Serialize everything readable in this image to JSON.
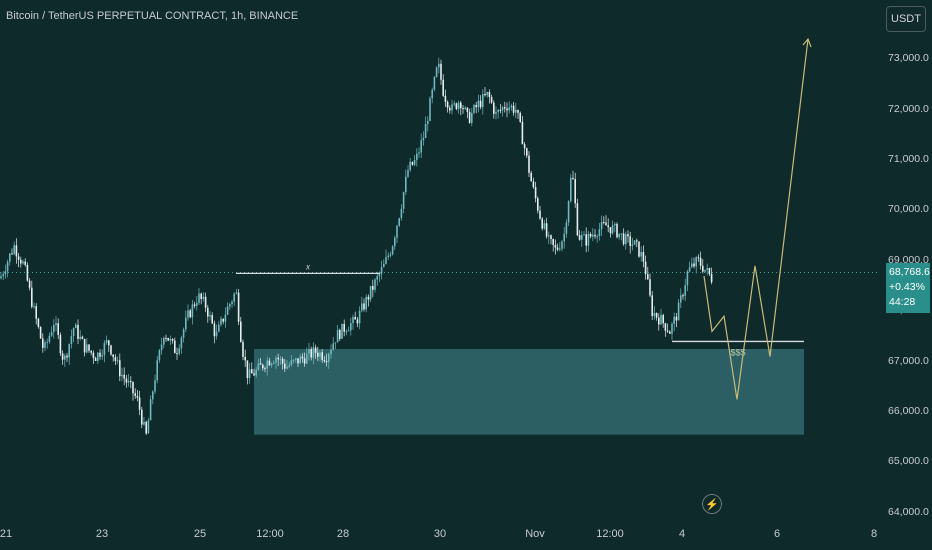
{
  "header": {
    "title": "Bitcoin / TetherUS PERPETUAL CONTRACT, 1h, BINANCE",
    "currency_button": "USDT"
  },
  "price_tag": {
    "price": "68,768.6",
    "change": "+0.43%",
    "countdown": "44:28"
  },
  "annotations": {
    "level_label": "x",
    "sss_label": "$$$"
  },
  "icons": {
    "replay": "lightning-bolt-icon"
  },
  "colors": {
    "background": "#0f2a2a",
    "candle": "#5fa8b0",
    "demand_zone": "#2e6266",
    "projection": "#c9b97a",
    "level_line": "#d7dbe0",
    "price_tag": "#2a8f8a"
  },
  "chart_data": {
    "type": "candlestick",
    "y_axis": {
      "ticks": [
        64000,
        65000,
        66000,
        67000,
        68000,
        69000,
        70000,
        71000,
        72000,
        73000
      ],
      "tick_labels": [
        "64,000.0",
        "65,000.0",
        "66,000.0",
        "67,000.0",
        "68,000.0",
        "69,000.0",
        "70,000.0",
        "71,000.0",
        "72,000.0",
        "73,000.0"
      ],
      "range": [
        63800,
        73500
      ]
    },
    "x_axis": {
      "tick_labels": [
        "21",
        "23",
        "25",
        "12:00",
        "28",
        "30",
        "Nov",
        "12:00",
        "4",
        "6",
        "8"
      ]
    },
    "last_price": 68768.6,
    "price_path": [
      [
        0,
        68650
      ],
      [
        14,
        69300
      ],
      [
        24,
        68900
      ],
      [
        34,
        68000
      ],
      [
        44,
        67200
      ],
      [
        54,
        67800
      ],
      [
        64,
        67000
      ],
      [
        74,
        67700
      ],
      [
        84,
        67300
      ],
      [
        96,
        67100
      ],
      [
        108,
        67400
      ],
      [
        120,
        66800
      ],
      [
        130,
        66500
      ],
      [
        138,
        66200
      ],
      [
        146,
        65500
      ],
      [
        154,
        66600
      ],
      [
        164,
        67600
      ],
      [
        176,
        67200
      ],
      [
        188,
        67900
      ],
      [
        198,
        68300
      ],
      [
        206,
        68100
      ],
      [
        216,
        67500
      ],
      [
        226,
        68000
      ],
      [
        236,
        68400
      ],
      [
        242,
        67300
      ],
      [
        248,
        66700
      ],
      [
        256,
        66800
      ],
      [
        266,
        67000
      ],
      [
        276,
        67100
      ],
      [
        286,
        66900
      ],
      [
        296,
        67000
      ],
      [
        306,
        67100
      ],
      [
        316,
        67200
      ],
      [
        326,
        67100
      ],
      [
        336,
        67500
      ],
      [
        346,
        67700
      ],
      [
        356,
        67800
      ],
      [
        366,
        68200
      ],
      [
        376,
        68600
      ],
      [
        384,
        68900
      ],
      [
        392,
        69300
      ],
      [
        400,
        70000
      ],
      [
        408,
        70800
      ],
      [
        416,
        71000
      ],
      [
        424,
        71500
      ],
      [
        432,
        72300
      ],
      [
        438,
        72900
      ],
      [
        444,
        72300
      ],
      [
        452,
        72000
      ],
      [
        460,
        72200
      ],
      [
        468,
        71800
      ],
      [
        478,
        72100
      ],
      [
        488,
        72300
      ],
      [
        496,
        71900
      ],
      [
        506,
        72100
      ],
      [
        516,
        72000
      ],
      [
        524,
        71300
      ],
      [
        532,
        70500
      ],
      [
        540,
        69900
      ],
      [
        548,
        69400
      ],
      [
        556,
        69200
      ],
      [
        564,
        69500
      ],
      [
        572,
        70800
      ],
      [
        578,
        69500
      ],
      [
        586,
        69400
      ],
      [
        596,
        69600
      ],
      [
        606,
        69700
      ],
      [
        616,
        69600
      ],
      [
        626,
        69400
      ],
      [
        636,
        69300
      ],
      [
        644,
        69000
      ],
      [
        652,
        68000
      ],
      [
        662,
        67800
      ],
      [
        670,
        67600
      ],
      [
        678,
        68000
      ],
      [
        688,
        68800
      ],
      [
        698,
        69000
      ],
      [
        706,
        68800
      ],
      [
        712,
        68650
      ]
    ],
    "demand_zone": {
      "x_from": 254,
      "x_to": 804,
      "price_top": 67250,
      "price_bottom": 65550
    },
    "level_line": {
      "x_from": 236,
      "x_to": 380,
      "price": 68750,
      "label": "x"
    },
    "sss_line": {
      "x_from": 672,
      "x_to": 804,
      "price": 67400,
      "label": "$$$"
    },
    "projection": [
      [
        704,
        68700
      ],
      [
        712,
        67600
      ],
      [
        724,
        67900
      ],
      [
        737,
        66250
      ],
      [
        755,
        68900
      ],
      [
        770,
        67100
      ],
      [
        808,
        73400
      ]
    ]
  }
}
